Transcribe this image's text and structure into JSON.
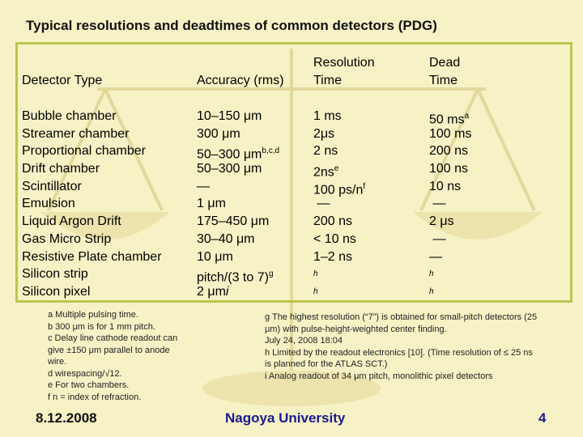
{
  "title": "Typical resolutions and deadtimes of common detectors (PDG)",
  "table": {
    "headers": {
      "type": "Detector Type",
      "accuracy": "Accuracy (rms)",
      "resolution_1": "Resolution",
      "resolution_2": "Time",
      "dead_1": "Dead",
      "dead_2": "Time"
    },
    "rows": [
      {
        "type": "Bubble chamber",
        "accuracy": "10–150 μm",
        "resolution": "1 ms",
        "dead": "50 ms",
        "dead_sup": "a"
      },
      {
        "type": "Streamer chamber",
        "accuracy": "300 μm",
        "resolution": "2μs",
        "dead": "100 ms"
      },
      {
        "type": "Proportional chamber",
        "accuracy": "50–300 μm",
        "accuracy_sup": "b,c,d",
        "resolution": "2 ns",
        "dead": "200 ns"
      },
      {
        "type": "Drift chamber",
        "accuracy": "50–300 μm",
        "resolution": "2ns",
        "resolution_sup": "e",
        "dead": "100 ns"
      },
      {
        "type": "Scintillator",
        "accuracy": "—",
        "resolution": "100 ps/n",
        "resolution_sup": "f",
        "dead": "10 ns"
      },
      {
        "type": "Emulsion",
        "accuracy": "1 μm",
        "resolution": "—",
        "dead": "—"
      },
      {
        "type": "Liquid Argon Drift",
        "accuracy": "175–450 μm",
        "resolution": "200 ns",
        "dead": "2 μs"
      },
      {
        "type": "Gas Micro Strip",
        "accuracy": "30–40 μm",
        "resolution": "< 10 ns",
        "dead": "—"
      },
      {
        "type": "Resistive Plate chamber",
        "accuracy": "10 μm",
        "resolution": "1–2 ns",
        "dead": "—"
      },
      {
        "type": "Silicon strip",
        "accuracy": "pitch/(3 to 7)",
        "accuracy_sup": "g",
        "resolution": "h",
        "dead": "h"
      },
      {
        "type": "Silicon pixel",
        "accuracy": "2 μm",
        "accuracy_sup": "i",
        "resolution": "h",
        "dead": "h"
      }
    ]
  },
  "footnotes_left": [
    "a  Multiple pulsing time.",
    "b  300 μm is for 1 mm pitch.",
    "c  Delay line cathode readout can give ±150 μm parallel to anode wire.",
    "d  wirespacing/√12.",
    "e  For two chambers.",
    "f  n = index of refraction."
  ],
  "footnotes_right": [
    "g The highest resolution (“7”) is obtained for small-pitch detectors (25 μm) with pulse-height-weighted center finding.",
    "July 24, 2008 18:04",
    "h Limited by the readout electronics [10]. (Time resolution of ≤ 25 ns is planned for the ATLAS SCT.)",
    "i Analog readout of 34 μm pitch, monolithic pixel detectors"
  ],
  "footer": {
    "date": "8.12.2008",
    "org": "Nagoya University",
    "page": "4"
  },
  "colors": {
    "background": "#f6f2c6",
    "frame": "#b9c64e",
    "footer_text": "#1a1a8c"
  }
}
